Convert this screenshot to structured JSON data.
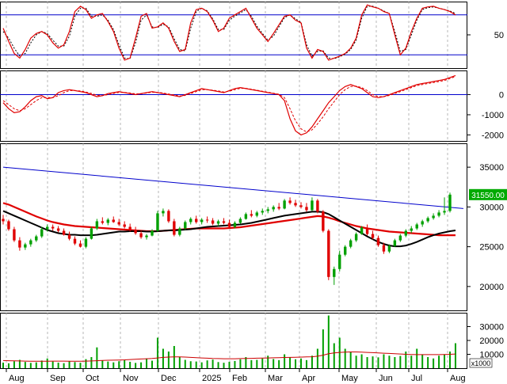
{
  "chart_data": {
    "type": "candlestick",
    "x_labels": [
      "Aug",
      "Sep",
      "Oct",
      "Nov",
      "Dec",
      "2025",
      "Feb",
      "Mar",
      "Apr",
      "May",
      "Jun",
      "Jul",
      "Aug"
    ],
    "colors": {
      "up": "#00a000",
      "down": "#e00000",
      "ma_short": "#000000",
      "ma_long": "#e00000",
      "trend": "#0000cc",
      "volume_ma": "#cc0000",
      "grid": "#999999"
    },
    "stoch_panel": {
      "ticks": [
        "50"
      ],
      "levels": [
        80,
        20
      ],
      "ylim": [
        0,
        100
      ],
      "k": [
        60,
        40,
        22,
        15,
        28,
        45,
        52,
        55,
        50,
        38,
        30,
        35,
        55,
        85,
        93,
        88,
        75,
        80,
        82,
        70,
        55,
        30,
        12,
        15,
        45,
        78,
        82,
        60,
        62,
        68,
        60,
        40,
        25,
        28,
        68,
        88,
        90,
        85,
        72,
        55,
        60,
        75,
        80,
        85,
        90,
        75,
        60,
        50,
        40,
        52,
        65,
        78,
        80,
        72,
        68,
        30,
        15,
        28,
        25,
        12,
        15,
        18,
        22,
        30,
        45,
        80,
        95,
        92,
        90,
        85,
        82,
        50,
        20,
        30,
        55,
        75,
        90,
        92,
        93,
        90,
        88,
        85,
        80
      ],
      "d": [
        55,
        45,
        30,
        18,
        22,
        38,
        50,
        55,
        52,
        42,
        33,
        33,
        48,
        78,
        90,
        90,
        78,
        78,
        80,
        72,
        58,
        35,
        15,
        14,
        38,
        72,
        80,
        62,
        61,
        66,
        62,
        44,
        28,
        26,
        60,
        85,
        90,
        86,
        74,
        58,
        58,
        72,
        78,
        83,
        88,
        78,
        63,
        52,
        42,
        48,
        62,
        76,
        80,
        74,
        69,
        35,
        18,
        25,
        26,
        15,
        14,
        17,
        21,
        28,
        42,
        75,
        93,
        93,
        90,
        86,
        82,
        55,
        25,
        28,
        50,
        72,
        88,
        91,
        92,
        90,
        88,
        86,
        82
      ]
    },
    "macd_panel": {
      "ticks": [
        "0",
        "-1000",
        "-2000"
      ],
      "ylim": [
        -2300,
        1200
      ],
      "macd": [
        -400,
        -700,
        -900,
        -850,
        -600,
        -300,
        -100,
        -50,
        -200,
        -150,
        100,
        200,
        250,
        200,
        150,
        100,
        0,
        -100,
        -50,
        50,
        100,
        150,
        100,
        50,
        0,
        50,
        100,
        150,
        100,
        50,
        0,
        -50,
        -100,
        0,
        100,
        200,
        300,
        250,
        200,
        150,
        100,
        200,
        300,
        350,
        300,
        250,
        200,
        150,
        100,
        50,
        0,
        -300,
        -1200,
        -1800,
        -2000,
        -1900,
        -1600,
        -1200,
        -800,
        -400,
        -100,
        200,
        400,
        500,
        400,
        300,
        100,
        -100,
        -150,
        -100,
        0,
        100,
        200,
        300,
        400,
        500,
        550,
        600,
        650,
        700,
        750,
        850,
        950
      ],
      "signal": [
        -300,
        -500,
        -700,
        -800,
        -700,
        -500,
        -300,
        -150,
        -150,
        -150,
        -50,
        100,
        200,
        200,
        180,
        130,
        60,
        -30,
        -50,
        0,
        60,
        110,
        110,
        80,
        40,
        40,
        80,
        120,
        110,
        80,
        30,
        -20,
        -70,
        -40,
        50,
        150,
        250,
        250,
        220,
        180,
        130,
        170,
        250,
        310,
        310,
        270,
        220,
        170,
        120,
        70,
        20,
        -150,
        -700,
        -1300,
        -1700,
        -1850,
        -1750,
        -1450,
        -1100,
        -700,
        -350,
        0,
        250,
        400,
        420,
        350,
        200,
        0,
        -100,
        -100,
        -40,
        50,
        150,
        250,
        350,
        450,
        500,
        550,
        600,
        650,
        700,
        800,
        900
      ]
    },
    "price_panel": {
      "ticks": [
        "35000",
        "30000",
        "25000",
        "20000"
      ],
      "ylim": [
        17000,
        38000
      ],
      "last_price_label": "31550.00",
      "candles": [
        [
          28500,
          29000,
          27800,
          28200
        ],
        [
          28200,
          28400,
          27000,
          27200
        ],
        [
          27200,
          27500,
          25600,
          25800
        ],
        [
          25800,
          26200,
          24500,
          24900
        ],
        [
          24900,
          25500,
          24600,
          25300
        ],
        [
          25300,
          26000,
          25000,
          25800
        ],
        [
          25800,
          26500,
          25600,
          26300
        ],
        [
          26300,
          27500,
          26100,
          27200
        ],
        [
          27200,
          27800,
          26900,
          27500
        ],
        [
          27500,
          27800,
          27000,
          27300
        ],
        [
          27300,
          27600,
          26800,
          27000
        ],
        [
          27000,
          27300,
          26400,
          26500
        ],
        [
          26500,
          26900,
          25800,
          26000
        ],
        [
          26000,
          26300,
          25200,
          25400
        ],
        [
          25400,
          25800,
          24900,
          25000
        ],
        [
          25000,
          26200,
          24800,
          26000
        ],
        [
          26000,
          27500,
          25900,
          27300
        ],
        [
          27300,
          28500,
          27100,
          28200
        ],
        [
          28200,
          28700,
          27800,
          28000
        ],
        [
          28000,
          28600,
          27700,
          28400
        ],
        [
          28400,
          28800,
          28000,
          28100
        ],
        [
          28100,
          28500,
          27600,
          27800
        ],
        [
          27800,
          28200,
          27300,
          27500
        ],
        [
          27500,
          27900,
          26900,
          27100
        ],
        [
          27100,
          27500,
          26500,
          26700
        ],
        [
          26700,
          27000,
          26000,
          26200
        ],
        [
          26200,
          26600,
          25900,
          26400
        ],
        [
          26400,
          27200,
          26300,
          27000
        ],
        [
          27000,
          29500,
          26900,
          29200
        ],
        [
          29200,
          29800,
          28800,
          29500
        ],
        [
          29500,
          29700,
          28000,
          28200
        ],
        [
          28200,
          28500,
          26300,
          26500
        ],
        [
          26500,
          27500,
          26300,
          27300
        ],
        [
          27300,
          28300,
          27100,
          28100
        ],
        [
          28100,
          28700,
          27800,
          28500
        ],
        [
          28500,
          28900,
          27900,
          28100
        ],
        [
          28100,
          28600,
          27800,
          28400
        ],
        [
          28400,
          28800,
          28000,
          28300
        ],
        [
          28300,
          28600,
          27700,
          27900
        ],
        [
          27900,
          28400,
          27600,
          28200
        ],
        [
          28200,
          28600,
          27800,
          28000
        ],
        [
          28000,
          28400,
          27300,
          27500
        ],
        [
          27500,
          28200,
          27300,
          28000
        ],
        [
          28000,
          28700,
          27900,
          28500
        ],
        [
          28500,
          29300,
          28400,
          29100
        ],
        [
          29100,
          29600,
          28700,
          28900
        ],
        [
          28900,
          29500,
          28700,
          29300
        ],
        [
          29300,
          29800,
          29000,
          29500
        ],
        [
          29500,
          30000,
          29200,
          29700
        ],
        [
          29700,
          30200,
          29400,
          30000
        ],
        [
          30000,
          30500,
          29600,
          29800
        ],
        [
          29800,
          31000,
          29700,
          30800
        ],
        [
          30800,
          31200,
          30300,
          30500
        ],
        [
          30500,
          30900,
          30000,
          30200
        ],
        [
          30200,
          30600,
          29800,
          30000
        ],
        [
          30000,
          30500,
          29400,
          29600
        ],
        [
          29600,
          31200,
          29500,
          30800
        ],
        [
          30800,
          31000,
          29200,
          29400
        ],
        [
          29400,
          29600,
          26800,
          27000
        ],
        [
          27000,
          27200,
          20800,
          21200
        ],
        [
          21200,
          22500,
          20200,
          22200
        ],
        [
          22200,
          24500,
          21900,
          24000
        ],
        [
          24000,
          25200,
          23800,
          25000
        ],
        [
          25000,
          26000,
          24800,
          25800
        ],
        [
          25800,
          26800,
          25600,
          26600
        ],
        [
          26600,
          27600,
          26500,
          27400
        ],
        [
          27400,
          27800,
          26400,
          26600
        ],
        [
          26600,
          27000,
          25900,
          26100
        ],
        [
          26100,
          26400,
          25000,
          25200
        ],
        [
          25200,
          25500,
          24100,
          24400
        ],
        [
          24400,
          25300,
          24200,
          25100
        ],
        [
          25100,
          26000,
          25000,
          25800
        ],
        [
          25800,
          26600,
          25600,
          26400
        ],
        [
          26400,
          27200,
          26200,
          27000
        ],
        [
          27000,
          27600,
          26700,
          27300
        ],
        [
          27300,
          28000,
          27100,
          27800
        ],
        [
          27800,
          28400,
          27500,
          28200
        ],
        [
          28200,
          28800,
          28000,
          28600
        ],
        [
          28600,
          29200,
          28400,
          28900
        ],
        [
          28900,
          29600,
          28700,
          29300
        ],
        [
          29300,
          31200,
          29000,
          29500
        ],
        [
          29500,
          31800,
          29300,
          31550
        ]
      ],
      "ma_short": [
        29500,
        29200,
        28900,
        28600,
        28300,
        28000,
        27700,
        27400,
        27100,
        26900,
        26700,
        26600,
        26500,
        26500,
        26450,
        26450,
        26450,
        26500,
        26600,
        26700,
        26800,
        26900,
        26900,
        26950,
        26950,
        26950,
        26900,
        26900,
        26950,
        27000,
        27050,
        27050,
        27100,
        27150,
        27200,
        27300,
        27400,
        27500,
        27550,
        27600,
        27650,
        27700,
        27750,
        27800,
        27900,
        28000,
        28150,
        28300,
        28450,
        28600,
        28750,
        28900,
        29000,
        29100,
        29200,
        29300,
        29400,
        29400,
        29350,
        29100,
        28700,
        28300,
        27900,
        27500,
        27100,
        26700,
        26300,
        25950,
        25600,
        25350,
        25150,
        25050,
        25050,
        25150,
        25350,
        25600,
        25900,
        26200,
        26450,
        26650,
        26800,
        26950,
        27050
      ],
      "ma_long": [
        30500,
        30300,
        30000,
        29700,
        29400,
        29100,
        28800,
        28550,
        28300,
        28100,
        27950,
        27800,
        27700,
        27600,
        27550,
        27500,
        27450,
        27400,
        27350,
        27300,
        27250,
        27200,
        27150,
        27100,
        27050,
        27000,
        26950,
        26950,
        26950,
        27000,
        27050,
        27100,
        27150,
        27200,
        27250,
        27300,
        27300,
        27300,
        27300,
        27300,
        27300,
        27350,
        27400,
        27450,
        27550,
        27650,
        27750,
        27850,
        27950,
        28050,
        28150,
        28250,
        28350,
        28450,
        28550,
        28650,
        28750,
        28850,
        28800,
        28650,
        28450,
        28200,
        28000,
        27800,
        27600,
        27450,
        27300,
        27200,
        27100,
        27000,
        26900,
        26850,
        26800,
        26750,
        26700,
        26650,
        26600,
        26550,
        26500,
        26450,
        26450,
        26450,
        26450
      ],
      "trend_line": [
        [
          0,
          35000
        ],
        [
          82,
          29800
        ]
      ]
    },
    "volume_panel": {
      "ticks": [
        "30000",
        "20000",
        "10000"
      ],
      "unit_label": "x1000",
      "ylim": [
        0,
        40000
      ],
      "volume": [
        4000,
        3500,
        5000,
        6000,
        4500,
        3800,
        4200,
        5500,
        7000,
        4800,
        4000,
        3600,
        5200,
        4400,
        3900,
        6500,
        8000,
        15000,
        5600,
        4800,
        4200,
        5000,
        6000,
        4600,
        3800,
        4200,
        7000,
        5400,
        22000,
        14000,
        12000,
        16000,
        8000,
        6000,
        5000,
        4800,
        4200,
        5600,
        6200,
        4400,
        3900,
        4600,
        5200,
        6400,
        8000,
        5800,
        6000,
        7000,
        9000,
        6600,
        5800,
        10000,
        8000,
        6400,
        7000,
        5800,
        9000,
        14000,
        28000,
        38000,
        18000,
        22000,
        14000,
        12000,
        9000,
        10000,
        8000,
        8500,
        7800,
        10000,
        9000,
        8000,
        8800,
        12000,
        9000,
        14000,
        10000,
        8000,
        7000,
        9000,
        10000,
        12000,
        18000
      ],
      "volume_ma": [
        5500,
        5400,
        5300,
        5200,
        5100,
        5000,
        5000,
        5000,
        5000,
        5100,
        5100,
        5100,
        5000,
        5000,
        5000,
        5100,
        5200,
        5400,
        5600,
        5700,
        5800,
        5900,
        6000,
        6200,
        6400,
        6600,
        6800,
        7000,
        7400,
        7800,
        8000,
        8100,
        8100,
        8000,
        7800,
        7600,
        7400,
        7200,
        7000,
        6900,
        6800,
        6800,
        6800,
        6900,
        7000,
        7100,
        7200,
        7300,
        7400,
        7500,
        7600,
        7700,
        7800,
        7900,
        8000,
        8100,
        8200,
        8600,
        9400,
        10400,
        11000,
        11400,
        11600,
        11700,
        11700,
        11600,
        11400,
        11200,
        11000,
        10800,
        10600,
        10400,
        10200,
        10000,
        9900,
        9800,
        9800,
        9800,
        9800,
        9800,
        9900,
        10000,
        10200
      ]
    }
  }
}
